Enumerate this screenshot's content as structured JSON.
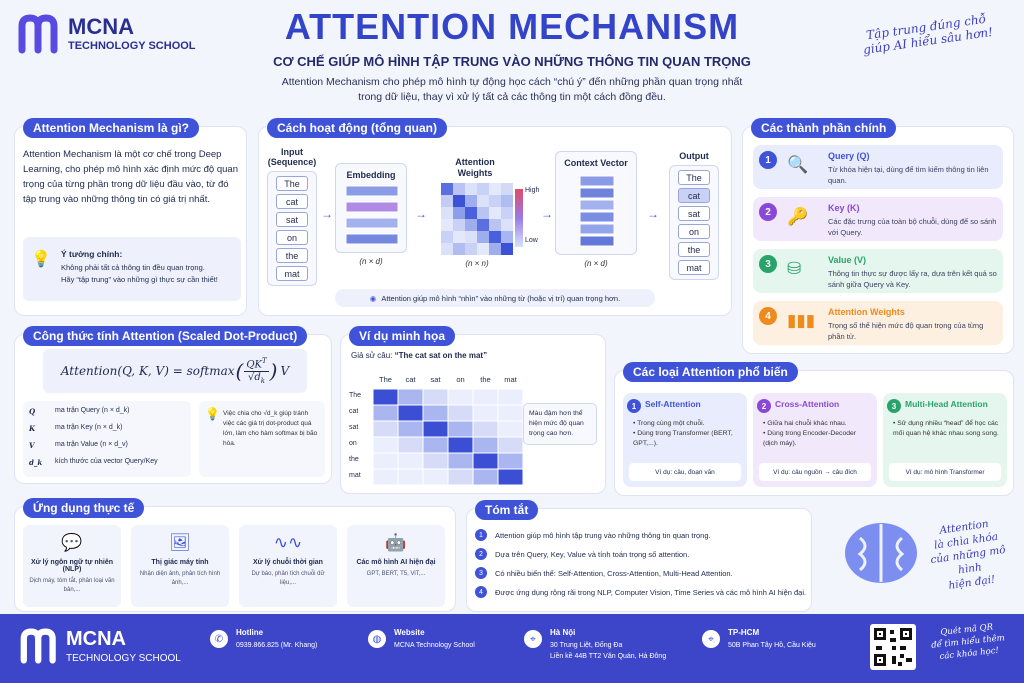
{
  "brand": {
    "name": "MCNA",
    "sub": "TECHNOLOGY SCHOOL"
  },
  "header": {
    "title": "ATTENTION MECHANISM",
    "subtitle": "CƠ CHẾ GIÚP MÔ HÌNH TẬP TRUNG VÀO NHỮNG THÔNG TIN QUAN TRỌNG",
    "intro_1": "Attention Mechanism cho phép mô hình tự động học cách “chú ý” đến những phần quan trọng nhất",
    "intro_2": "trong dữ liệu, thay vì xử lý tất cả các thông tin một cách đồng đều.",
    "handnote_1": "Tập trung đúng chỗ",
    "handnote_2": "giúp AI hiểu sâu hơn!"
  },
  "what": {
    "title": "Attention Mechanism là gì?",
    "body": "Attention Mechanism là một cơ chế trong Deep Learning, cho phép mô hình xác định mức độ quan trọng của từng phần trong dữ liệu đầu vào, từ đó tập trung vào những thông tin có giá trị nhất.",
    "idea_title": "Ý tưởng chính:",
    "idea_1": "Không phải tất cả thông tin đều quan trọng.",
    "idea_2": "Hãy “tập trung” vào những gì thực sự cần thiết!"
  },
  "how": {
    "title": "Cách hoạt động (tổng quan)",
    "input_label_1": "Input",
    "input_label_2": "(Sequence)",
    "tokens": [
      "The",
      "cat",
      "sat",
      "on",
      "the",
      "mat"
    ],
    "embedding_label": "Embedding",
    "embedding_dim": "(n × d)",
    "weights_label_1": "Attention",
    "weights_label_2": "Weights",
    "weights_dim": "(n × n)",
    "legend_high": "High",
    "legend_low": "Low",
    "context_label": "Context Vector",
    "context_dim": "(n × d)",
    "output_label": "Output",
    "output_tokens": [
      "The",
      "cat",
      "sat",
      "on",
      "the",
      "mat"
    ],
    "note": "Attention giúp mô hình “nhìn” vào những từ (hoặc vị trí) quan trọng hơn."
  },
  "components": {
    "title": "Các thành phần chính",
    "items": [
      {
        "num": "1",
        "name": "Query (Q)",
        "desc": "Từ khóa hiện tại, dùng để tìm kiếm thông tin liên quan.",
        "icon": "search-icon",
        "color": "#3f53d9",
        "bg": "#e8ecfc"
      },
      {
        "num": "2",
        "name": "Key (K)",
        "desc": "Các đặc trưng của toàn bộ chuỗi, dùng để so sánh với Query.",
        "icon": "key-icon",
        "color": "#8a48d6",
        "bg": "#f1e9fb"
      },
      {
        "num": "3",
        "name": "Value (V)",
        "desc": "Thông tin thực sự được lấy ra, dựa trên kết quả so sánh giữa Query và Key.",
        "icon": "database-icon",
        "color": "#2aa36b",
        "bg": "#e5f6ee"
      },
      {
        "num": "4",
        "name": "Attention Weights",
        "desc": "Trọng số thể hiện mức độ quan trọng của từng phần tử.",
        "icon": "bar-chart-icon",
        "color": "#ee8b1f",
        "bg": "#fdf0e1"
      }
    ]
  },
  "formula": {
    "title": "Công thức tính Attention (Scaled Dot-Product)",
    "expr_left": "Attention(Q, K, V) = softmax",
    "expr_num": "QK",
    "expr_sup": "T",
    "expr_den": "√d",
    "expr_den_sub": "k",
    "expr_right": "V",
    "defs": [
      {
        "sym": "Q",
        "desc": "ma trận Query (n × d_k)"
      },
      {
        "sym": "K",
        "desc": "ma trận Key (n × d_k)"
      },
      {
        "sym": "V",
        "desc": "ma trận Value (n × d_v)"
      },
      {
        "sym": "d_k",
        "desc": "kích thước của vector Query/Key"
      }
    ],
    "tip": "Việc chia cho √d_k giúp tránh việc các giá trị dot-product quá lớn, làm cho hàm softmax bị bão hòa."
  },
  "example": {
    "title": "Ví dụ minh họa",
    "prompt": "Giả sử câu:",
    "sentence": "“The cat sat on the mat”",
    "cols": [
      "The",
      "cat",
      "sat",
      "on",
      "the",
      "mat"
    ],
    "rows": [
      "The",
      "cat",
      "sat",
      "on",
      "the",
      "mat"
    ],
    "note": "Màu đậm hơn thể hiện mức độ quan trọng cao hơn."
  },
  "types": {
    "title": "Các loại Attention phổ biến",
    "items": [
      {
        "num": "1",
        "name": "Self-Attention",
        "b1": "• Trong cùng một chuỗi.",
        "b2": "• Dùng trong Transformer (BERT, GPT,...).",
        "ex": "Ví dụ: câu, đoạn văn",
        "color": "#3f53d9",
        "bg": "#e8ecfc"
      },
      {
        "num": "2",
        "name": "Cross-Attention",
        "b1": "• Giữa hai chuỗi khác nhau.",
        "b2": "• Dùng trong Encoder-Decoder (dịch máy).",
        "ex": "Ví dụ: câu nguồn → câu đích",
        "color": "#8a48d6",
        "bg": "#f1e9fb"
      },
      {
        "num": "3",
        "name": "Multi-Head Attention",
        "b1": "• Sử dụng nhiều “head” để học các mối quan hệ khác nhau song song.",
        "b2": "",
        "ex": "Ví dụ: mô hình Transformer",
        "color": "#2aa36b",
        "bg": "#e5f6ee"
      }
    ]
  },
  "apps": {
    "title": "Ứng dụng thực tế",
    "items": [
      {
        "t": "Xử lý ngôn ngữ tự nhiên (NLP)",
        "d": "Dịch máy, tóm tắt, phân loại văn bản,...",
        "icon": "chat-icon"
      },
      {
        "t": "Thị giác máy tính",
        "d": "Nhận diện ảnh, phân tích hình ảnh,...",
        "icon": "image-icon"
      },
      {
        "t": "Xử lý chuỗi thời gian",
        "d": "Dự báo, phân tích chuỗi dữ liệu,...",
        "icon": "waveform-icon"
      },
      {
        "t": "Các mô hình AI hiện đại",
        "d": "GPT, BERT, T5, ViT,...",
        "icon": "robot-icon"
      }
    ]
  },
  "summary": {
    "title": "Tóm tắt",
    "items": [
      {
        "n": "1",
        "t": "Attention giúp mô hình tập trung vào những thông tin quan trọng."
      },
      {
        "n": "2",
        "t": "Dựa trên Query, Key, Value và tính toán trọng số attention."
      },
      {
        "n": "3",
        "t": "Có nhiều biến thể: Self-Attention, Cross-Attention, Multi-Head Attention."
      },
      {
        "n": "4",
        "t": "Được ứng dụng rộng rãi trong NLP, Computer Vision, Time Series và các mô hình AI hiện đại."
      }
    ],
    "hand_1": "Attention",
    "hand_2": "là chìa khóa",
    "hand_3": "của những mô hình",
    "hand_4": "hiện đại!"
  },
  "footer": {
    "brand": "MCNA",
    "brand_sub": "TECHNOLOGY SCHOOL",
    "hotline_label": "Hotline",
    "hotline": "0939.866.825 (Mr. Khang)",
    "website_label": "Website",
    "website": "MCNA Technology School",
    "hanoi_label": "Hà Nội",
    "hanoi_1": "30 Trung Liệt, Đống Đa",
    "hanoi_2": "Liền kề 44B TT2 Văn Quán, Hà Đông",
    "hcm_label": "TP-HCM",
    "hcm": "50B Phan Tây Hồ, Cầu Kiệu",
    "qr_note_1": "Quét mã QR",
    "qr_note_2": "để tìm hiểu thêm",
    "qr_note_3": "các khóa học!"
  }
}
